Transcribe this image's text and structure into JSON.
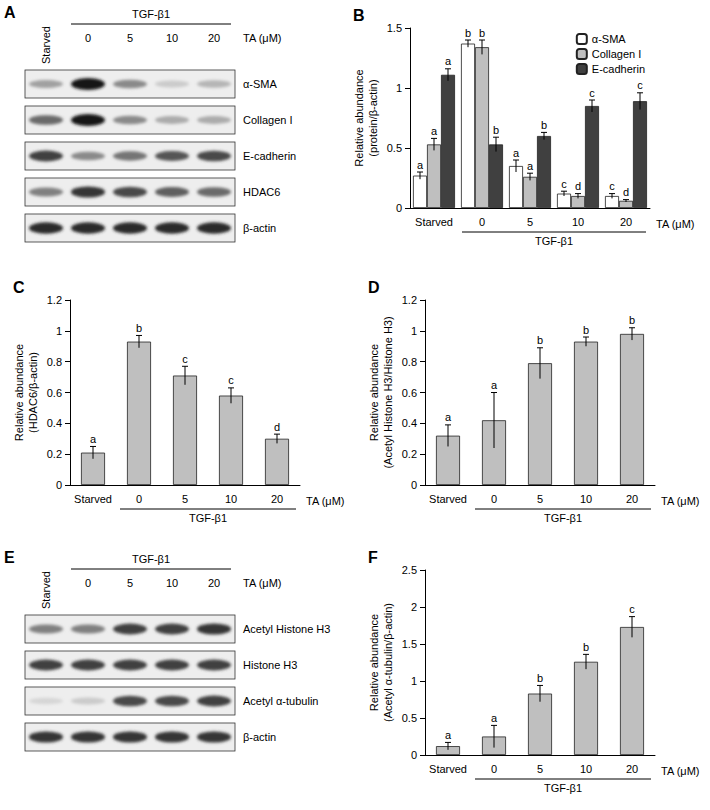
{
  "blots": [
    {
      "title": "A",
      "lane_labels": [
        "Starved",
        "0",
        "5",
        "10",
        "20"
      ],
      "group_label": "TGF-β1",
      "axis_label": "TA (μM)",
      "rows": [
        {
          "label": "α-SMA",
          "bands": [
            0.35,
            1.0,
            0.45,
            0.15,
            0.25
          ]
        },
        {
          "label": "Collagen I",
          "bands": [
            0.6,
            1.0,
            0.45,
            0.3,
            0.3
          ]
        },
        {
          "label": "E-cadherin",
          "bands": [
            0.8,
            0.45,
            0.55,
            0.7,
            0.75
          ]
        },
        {
          "label": "HDAC6",
          "bands": [
            0.5,
            0.85,
            0.75,
            0.65,
            0.6
          ]
        },
        {
          "label": "β-actin",
          "bands": [
            0.9,
            0.9,
            0.9,
            0.9,
            0.9
          ]
        }
      ]
    },
    {
      "title": "E",
      "lane_labels": [
        "Starved",
        "0",
        "5",
        "10",
        "20"
      ],
      "group_label": "TGF-β1",
      "axis_label": "TA (μM)",
      "rows": [
        {
          "label": "Acetyl Histone H3",
          "bands": [
            0.5,
            0.5,
            0.8,
            0.8,
            0.85
          ]
        },
        {
          "label": "Histone H3",
          "bands": [
            0.8,
            0.8,
            0.8,
            0.8,
            0.8
          ]
        },
        {
          "label": "Acetyl α-tubulin",
          "bands": [
            0.1,
            0.15,
            0.75,
            0.75,
            0.8
          ]
        },
        {
          "label": "β-actin",
          "bands": [
            0.85,
            0.85,
            0.85,
            0.85,
            0.85
          ]
        }
      ]
    }
  ],
  "chart_data": [
    {
      "type": "bar",
      "title": "B",
      "categories": [
        "Starved",
        "0",
        "5",
        "10",
        "20"
      ],
      "xlabel": "TA (μM)",
      "x_group_label": "TGF-β1",
      "ylabel": "Relative abundance\n(protein/β-actin)",
      "ylim": [
        0,
        1.5
      ],
      "yticks": [
        0,
        0.5,
        1,
        1.5
      ],
      "grid": false,
      "legend": "upper right",
      "series": [
        {
          "name": "α-SMA",
          "color": "#ffffff",
          "values": [
            0.27,
            1.37,
            0.35,
            0.12,
            0.1
          ],
          "errors": [
            0.03,
            0.03,
            0.05,
            0.02,
            0.02
          ],
          "letters": [
            "a",
            "b",
            "a",
            "c",
            "c"
          ]
        },
        {
          "name": "Collagen I",
          "color": "#bfbfbf",
          "values": [
            0.53,
            1.34,
            0.26,
            0.1,
            0.06
          ],
          "errors": [
            0.05,
            0.06,
            0.03,
            0.02,
            0.01
          ],
          "letters": [
            "a",
            "b",
            "a",
            "d",
            "d"
          ]
        },
        {
          "name": "E-cadherin",
          "color": "#404040",
          "values": [
            1.11,
            0.53,
            0.6,
            0.85,
            0.89
          ],
          "errors": [
            0.05,
            0.06,
            0.03,
            0.05,
            0.07
          ],
          "letters": [
            "a",
            "b",
            "b",
            "c",
            "c"
          ]
        }
      ]
    },
    {
      "type": "bar",
      "title": "C",
      "categories": [
        "Starved",
        "0",
        "5",
        "10",
        "20"
      ],
      "xlabel": "TA (μM)",
      "x_group_label": "TGF-β1",
      "ylabel": "Relative abundance\n(HDAC6/β-actin)",
      "ylim": [
        0,
        1.2
      ],
      "yticks": [
        0,
        0.2,
        0.4,
        0.6,
        0.8,
        1,
        1.2
      ],
      "grid": false,
      "color": "#bfbfbf",
      "values": [
        0.21,
        0.93,
        0.71,
        0.58,
        0.3
      ],
      "errors": [
        0.04,
        0.04,
        0.06,
        0.05,
        0.03
      ],
      "letters": [
        "a",
        "b",
        "c",
        "c",
        "d"
      ]
    },
    {
      "type": "bar",
      "title": "D",
      "categories": [
        "Starved",
        "0",
        "5",
        "10",
        "20"
      ],
      "xlabel": "TA (μM)",
      "x_group_label": "TGF-β1",
      "ylabel": "Relative abundance\n(Acetyl Histone H3/Histone H3)",
      "ylim": [
        0,
        1.2
      ],
      "yticks": [
        0,
        0.2,
        0.4,
        0.6,
        0.8,
        1,
        1.2
      ],
      "grid": false,
      "color": "#bfbfbf",
      "values": [
        0.32,
        0.42,
        0.79,
        0.93,
        0.98
      ],
      "errors": [
        0.07,
        0.18,
        0.1,
        0.03,
        0.04
      ],
      "letters": [
        "a",
        "a",
        "b",
        "b",
        "b"
      ]
    },
    {
      "type": "bar",
      "title": "F",
      "categories": [
        "Starved",
        "0",
        "5",
        "10",
        "20"
      ],
      "xlabel": "TA (μM)",
      "x_group_label": "TGF-β1",
      "ylabel": "Relative abundance\n(Acetyl α-tubulin/β-actin)",
      "ylim": [
        0,
        2.5
      ],
      "yticks": [
        0,
        0.5,
        1,
        1.5,
        2,
        2.5
      ],
      "grid": false,
      "color": "#bfbfbf",
      "values": [
        0.12,
        0.25,
        0.83,
        1.26,
        1.73
      ],
      "errors": [
        0.05,
        0.15,
        0.11,
        0.1,
        0.14
      ],
      "letters": [
        "a",
        "a",
        "b",
        "b",
        "c"
      ]
    }
  ]
}
